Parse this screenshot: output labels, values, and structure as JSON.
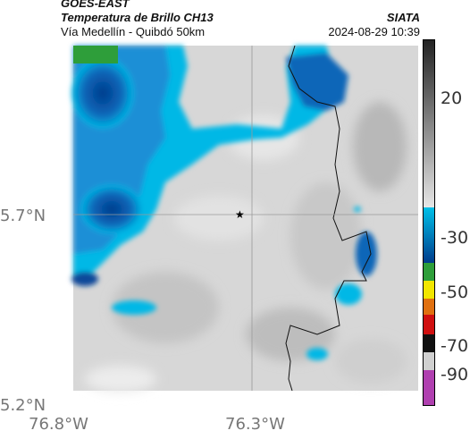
{
  "header": {
    "line1": "GOES-EAST",
    "line2": "Temperatura de Brillo CH13",
    "source": "SIATA",
    "subtitle": "Vía Medellín - Quibdó 50km",
    "timestamp": "2024-08-29 10:39"
  },
  "axes": {
    "lat_labels": [
      "5.7°N",
      "5.2°N"
    ],
    "lon_labels": [
      "76.8°W",
      "76.3°W"
    ]
  },
  "colorbar": {
    "ticks": [
      "20",
      "-30",
      "-50",
      "-70",
      "-90"
    ],
    "colors": {
      "warm_top": "#222222",
      "warm_bottom": "#e6e6e6",
      "cloud_top": "#00c0e8",
      "cloud_bottom": "#003c8c",
      "green": "#2e9e3a",
      "yellow": "#f2e600",
      "red": "#d01010",
      "black": "#111111",
      "magenta": "#b040b0"
    }
  },
  "map": {
    "marker_icon": "star-icon",
    "gridline_color": "#9a9a9a"
  }
}
